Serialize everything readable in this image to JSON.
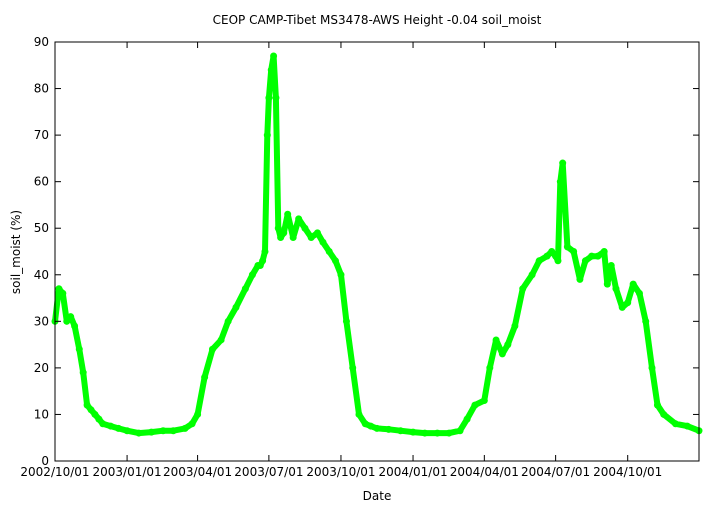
{
  "chart_data": {
    "type": "scatter",
    "title": "CEOP CAMP-Tibet MS3478-AWS Height -0.04 soil_moist",
    "xlabel": "Date",
    "ylabel": "soil_moist (%)",
    "xlim": [
      "2002-10-01",
      "2004-12-31"
    ],
    "ylim": [
      0,
      90
    ],
    "x_ticks": [
      "2002/10/01",
      "2003/01/01",
      "2003/04/01",
      "2003/07/01",
      "2003/10/01",
      "2004/01/01",
      "2004/04/01",
      "2004/07/01",
      "2004/10/01"
    ],
    "y_ticks": [
      "0",
      "10",
      "20",
      "30",
      "40",
      "50",
      "60",
      "70",
      "80",
      "90"
    ],
    "grid": false,
    "colors": {
      "series": "#00ff00",
      "axis": "#000000"
    },
    "series": [
      {
        "x": [
          "2002-10-01",
          "2002-10-06",
          "2002-10-11",
          "2002-10-16",
          "2002-10-21",
          "2002-10-26",
          "2002-11-01",
          "2002-11-06",
          "2002-11-11",
          "2002-11-16",
          "2002-11-21",
          "2002-11-26",
          "2002-12-01",
          "2002-12-11",
          "2002-12-21",
          "2003-01-01",
          "2003-01-16",
          "2003-02-01",
          "2003-02-16",
          "2003-03-01",
          "2003-03-16",
          "2003-03-25",
          "2003-04-01",
          "2003-04-10",
          "2003-04-20",
          "2003-05-01",
          "2003-05-10",
          "2003-05-20",
          "2003-06-01",
          "2003-06-10",
          "2003-06-17",
          "2003-06-20",
          "2003-06-23",
          "2003-06-26",
          "2003-06-29",
          "2003-07-01",
          "2003-07-04",
          "2003-07-07",
          "2003-07-10",
          "2003-07-13",
          "2003-07-16",
          "2003-07-20",
          "2003-07-25",
          "2003-08-01",
          "2003-08-08",
          "2003-08-16",
          "2003-08-24",
          "2003-09-01",
          "2003-09-08",
          "2003-09-16",
          "2003-09-24",
          "2003-10-01",
          "2003-10-08",
          "2003-10-16",
          "2003-10-24",
          "2003-11-01",
          "2003-11-08",
          "2003-11-16",
          "2003-12-01",
          "2003-12-16",
          "2004-01-01",
          "2004-01-16",
          "2004-02-01",
          "2004-02-16",
          "2004-03-01",
          "2004-03-10",
          "2004-03-20",
          "2004-04-01",
          "2004-04-08",
          "2004-04-16",
          "2004-04-24",
          "2004-05-01",
          "2004-05-10",
          "2004-05-20",
          "2004-06-01",
          "2004-06-10",
          "2004-06-20",
          "2004-06-26",
          "2004-07-01",
          "2004-07-04",
          "2004-07-07",
          "2004-07-10",
          "2004-07-16",
          "2004-07-24",
          "2004-08-01",
          "2004-08-08",
          "2004-08-16",
          "2004-08-24",
          "2004-09-01",
          "2004-09-05",
          "2004-09-10",
          "2004-09-16",
          "2004-09-24",
          "2004-10-01",
          "2004-10-08",
          "2004-10-16",
          "2004-10-24",
          "2004-11-01",
          "2004-11-08",
          "2004-11-16",
          "2004-12-01",
          "2004-12-16",
          "2004-12-31"
        ],
        "y": [
          30,
          37,
          36,
          30,
          31,
          29,
          24,
          19,
          12,
          11,
          10,
          9,
          8,
          7.5,
          7,
          6.5,
          6,
          6.2,
          6.5,
          6.5,
          7,
          8,
          10,
          18,
          24,
          26,
          30,
          33,
          37,
          40,
          42,
          42,
          43,
          45,
          70,
          78,
          84,
          87,
          78,
          50,
          48,
          49,
          53,
          48,
          52,
          50,
          48,
          49,
          47,
          45,
          43,
          40,
          30,
          20,
          10,
          8,
          7.5,
          7,
          6.8,
          6.5,
          6.2,
          6,
          6,
          6,
          6.5,
          9,
          12,
          13,
          20,
          26,
          23,
          25,
          29,
          37,
          40,
          43,
          44,
          45,
          44,
          43,
          60,
          64,
          46,
          45,
          39,
          43,
          44,
          44,
          45,
          38,
          42,
          37,
          33,
          34,
          38,
          36,
          30,
          20,
          12,
          10,
          8,
          7.5,
          6.5
        ]
      }
    ]
  }
}
